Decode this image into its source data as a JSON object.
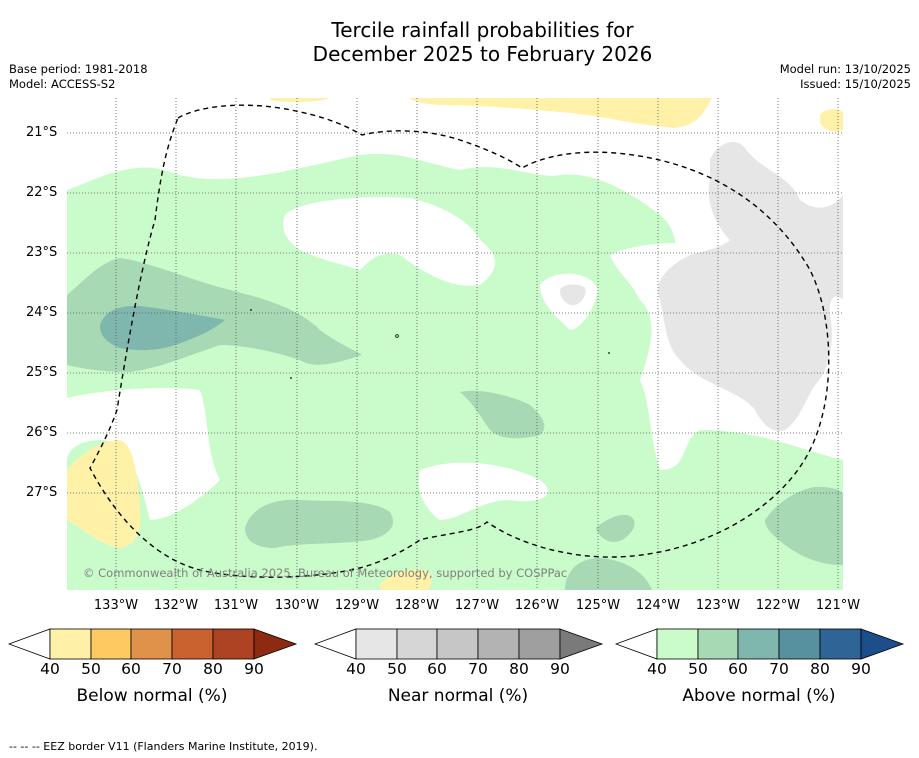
{
  "title_line1": "Tercile rainfall probabilities for",
  "title_line2": "December 2025 to February 2026",
  "base_period": "Base period: 1981-2018",
  "model": "Model: ACCESS-S2",
  "model_run": "Model run: 13/10/2025",
  "issued": "Issued: 15/10/2025",
  "map": {
    "latitude_labels": [
      "21°S",
      "22°S",
      "23°S",
      "24°S",
      "25°S",
      "26°S",
      "27°S"
    ],
    "longitude_labels": [
      "133°W",
      "132°W",
      "131°W",
      "130°W",
      "129°W",
      "128°W",
      "127°W",
      "126°W",
      "125°W",
      "124°W",
      "123°W",
      "122°W",
      "121°W"
    ],
    "copyright": "© Commonwealth of Australia 2025, Bureau of Meteorology, supported by COSPPac"
  },
  "legends": [
    {
      "label": "Below normal (%)",
      "ticks": [
        "40",
        "50",
        "60",
        "70",
        "80",
        "90"
      ],
      "colors": [
        "#fff2a8",
        "#fdc960",
        "#e0924a",
        "#c9622f",
        "#ad4322",
        "#8c2a12"
      ]
    },
    {
      "label": "Near normal (%)",
      "ticks": [
        "40",
        "50",
        "60",
        "70",
        "80",
        "90"
      ],
      "colors": [
        "#e6e6e6",
        "#d6d6d6",
        "#c6c6c6",
        "#b3b3b3",
        "#9f9f9f",
        "#7a7a7a"
      ]
    },
    {
      "label": "Above normal (%)",
      "ticks": [
        "40",
        "50",
        "60",
        "70",
        "80",
        "90"
      ],
      "colors": [
        "#c9fcca",
        "#a6d9b4",
        "#7fb6ae",
        "#57909e",
        "#2e6496",
        "#1b4e8a"
      ]
    }
  ],
  "footer": "--  --  -- EEZ border V11 (Flanders Marine Institute, 2019)."
}
